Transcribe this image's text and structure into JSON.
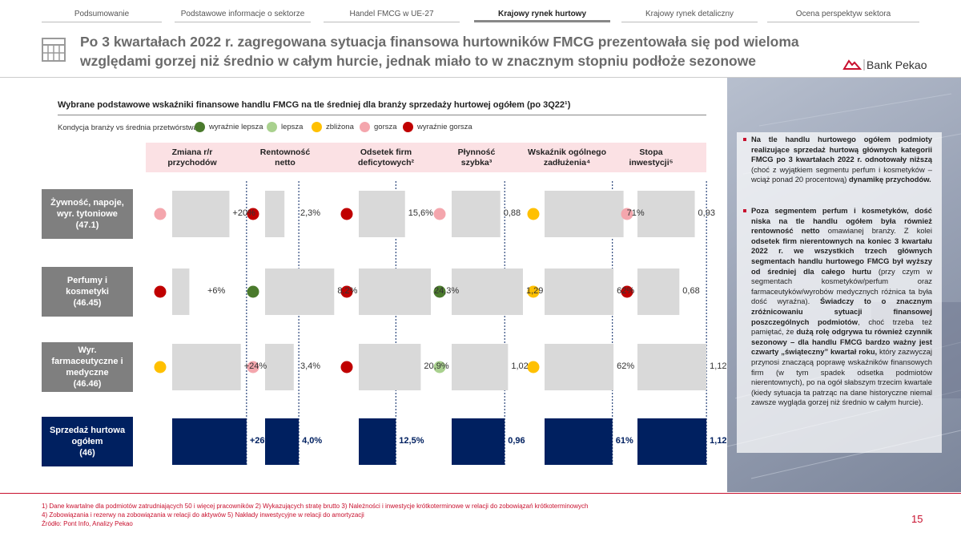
{
  "nav": {
    "tabs": [
      {
        "label": "Podsumowanie",
        "active": false
      },
      {
        "label": "Podstawowe informacje o sektorze",
        "active": false
      },
      {
        "label": "Handel FMCG w UE-27",
        "active": false
      },
      {
        "label": "Krajowy rynek hurtowy",
        "active": true
      },
      {
        "label": "Krajowy rynek detaliczny",
        "active": false
      },
      {
        "label": "Ocena perspektyw sektora",
        "active": false
      }
    ]
  },
  "header": {
    "title_line1": "Po 3 kwartałach 2022 r. zagregowana sytuacja finansowa hurtowników FMCG prezentowała się pod wieloma",
    "title_line2": "względami gorzej niż średnio w całym hurcie, jednak miało to w znacznym stopniu podłoże sezonowe",
    "logo_text": "Bank Pekao",
    "brand_color": "#c8102e"
  },
  "chart_data": {
    "type": "table",
    "title": "Wybrane podstawowe wskaźniki finansowe handlu FMCG na tle średniej dla branży sprzedaży hurtowej ogółem (po 3Q22¹)",
    "legend_label": "Kondycja branży vs średnia przetwórstwa:",
    "legend": [
      {
        "key": "wyraznie_lepsza",
        "label": "wyraźnie lepsza",
        "color": "#4a7a2c"
      },
      {
        "key": "lepsza",
        "label": "lepsza",
        "color": "#a9d18e"
      },
      {
        "key": "zblizona",
        "label": "zbliżona",
        "color": "#ffc000"
      },
      {
        "key": "gorsza",
        "label": "gorsza",
        "color": "#f4a6ad"
      },
      {
        "key": "wyraznie_gorsza",
        "label": "wyraźnie gorsza",
        "color": "#c00000"
      }
    ],
    "columns": [
      {
        "label1": "Zmiana r/r",
        "label2": "przychodów",
        "max": 28
      },
      {
        "label1": "Rentowność",
        "label2": "netto",
        "max": 9.5
      },
      {
        "label1": "Odsetek firm",
        "label2": "deficytowych²",
        "max": 27
      },
      {
        "label1": "Płynność",
        "label2": "szybka³",
        "max": 1.45
      },
      {
        "label1": "Wskaźnik ogólnego",
        "label2": "zadłużenia⁴",
        "max": 72
      },
      {
        "label1": "Stopa",
        "label2": "inwestycji⁵",
        "max": 1.3
      }
    ],
    "rows": [
      {
        "name": "Żywność, napoje, wyr. tytoniowe",
        "code": "(47.1)",
        "total": false,
        "values": [
          20,
          2.3,
          15.6,
          0.88,
          71,
          0.93
        ],
        "labels": [
          "+20%",
          "2,3%",
          "15,6%",
          "0,88",
          "71%",
          "0,93"
        ],
        "status": [
          "gorsza",
          "wyraznie_gorsza",
          "wyraznie_gorsza",
          "gorsza",
          "zblizona",
          "gorsza"
        ]
      },
      {
        "name": "Perfumy i kosmetyki",
        "code": "(46.45)",
        "total": false,
        "values": [
          6,
          8.2,
          24.3,
          1.29,
          62,
          0.68
        ],
        "labels": [
          "+6%",
          "8,2%",
          "24,3%",
          "1,29",
          "62%",
          "0,68"
        ],
        "status": [
          "wyraznie_gorsza",
          "wyraznie_lepsza",
          "wyraznie_gorsza",
          "wyraznie_lepsza",
          "zblizona",
          "wyraznie_gorsza"
        ]
      },
      {
        "name": "Wyr. farmaceutyczne i medyczne",
        "code": "(46.46)",
        "total": false,
        "values": [
          24,
          3.4,
          20.9,
          1.02,
          62,
          1.12
        ],
        "labels": [
          "+24%",
          "3,4%",
          "20,9%",
          "1,02",
          "62%",
          "1,12"
        ],
        "status": [
          "zblizona",
          "gorsza",
          "wyraznie_gorsza",
          "lepsza",
          "zblizona",
          null
        ]
      },
      {
        "name": "Sprzedaż hurtowa ogółem",
        "code": "(46)",
        "total": true,
        "values": [
          26,
          4.0,
          12.5,
          0.96,
          61,
          1.12
        ],
        "labels": [
          "+26%",
          "4,0%",
          "12,5%",
          "0,96",
          "61%",
          "1,12"
        ],
        "status": [
          null,
          null,
          null,
          null,
          null,
          null
        ]
      }
    ],
    "bar_color": "#d9d9d9",
    "total_bar_color": "#002060"
  },
  "right_text": {
    "p1_bold1": "Na tle handlu hurtowego ogółem podmioty realizujące sprzedaż hurtową głównych kategorii FMCG po 3 kwartałach 2022 r. odnotowały niższą",
    "p1_norm1": " (choć z wyjątkiem segmentu perfum i kosmetyków – wciąż ponad 20 procentową) ",
    "p1_bold2": "dynamikę przychodów.",
    "p2_bold1": "Poza segmentem perfum i kosmetyków, dość niska na tle handlu ogółem była również rentowność netto",
    "p2_norm1": " omawianej branży. Z kolei ",
    "p2_bold2": "odsetek firm nierentownych na koniec 3 kwartału 2022 r. we wszystkich trzech głównych segmentach handlu hurtowego FMCG był wyższy od średniej dla całego hurtu",
    "p2_norm2": " (przy czym w segmentach kosmetyków/perfum oraz farmaceutyków/wyrobów medycznych różnica ta była dość wyraźna). ",
    "p2_bold3": "Świadczy to o znacznym zróżnicowaniu sytuacji finansowej poszczególnych podmiotów",
    "p2_norm3": ", choć trzeba też pamiętać, że ",
    "p2_bold4": "dużą rolę odgrywa tu również czynnik sezonowy – dla handlu FMCG bardzo ważny jest czwarty „świąteczny” kwartał roku,",
    "p2_norm4": " który zazwyczaj przynosi znaczącą poprawę wskaźników finansowych firm (w tym spadek odsetka podmiotów nierentownych), po na ogół słabszym trzecim kwartale (kiedy sytuacja ta patrząc na dane historyczne niemal zawsze wygląda gorzej niż średnio w całym hurcie)."
  },
  "footer": {
    "line1": "1) Dane kwartalne dla podmiotów zatrudniających 50 i więcej pracowników     2) Wykazujących stratę brutto     3) Należności i inwestycje krótkoterminowe w relacji do zobowiązań krótkoterminowych",
    "line2": "4) Zobowiązania i rezerwy na zobowiązania w relacji do aktywów     5) Nakłady inwestycyjne w relacji do amortyzacji",
    "source": "Źródło: Pont Info, Analizy Pekao",
    "page_number": "15"
  }
}
